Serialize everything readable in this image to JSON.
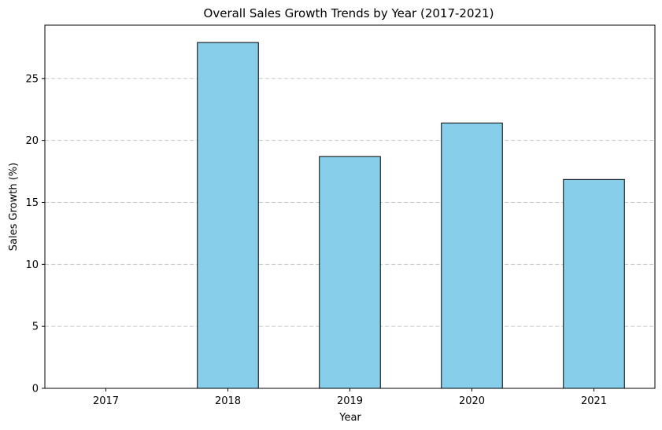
{
  "chart_data": {
    "type": "bar",
    "title": "Overall Sales Growth Trends by Year (2017-2021)",
    "xlabel": "Year",
    "ylabel": "Sales Growth (%)",
    "categories": [
      "2017",
      "2018",
      "2019",
      "2020",
      "2021"
    ],
    "values": [
      0,
      27.9,
      18.7,
      21.4,
      16.85
    ],
    "ylim": [
      0,
      29.3
    ],
    "yticks": [
      "0",
      "5",
      "10",
      "15",
      "20",
      "25"
    ],
    "grid": "y-dashed",
    "bar_color": "#87ceeb",
    "edge_color": "#000000",
    "grid_color": "#c8c8c8"
  }
}
